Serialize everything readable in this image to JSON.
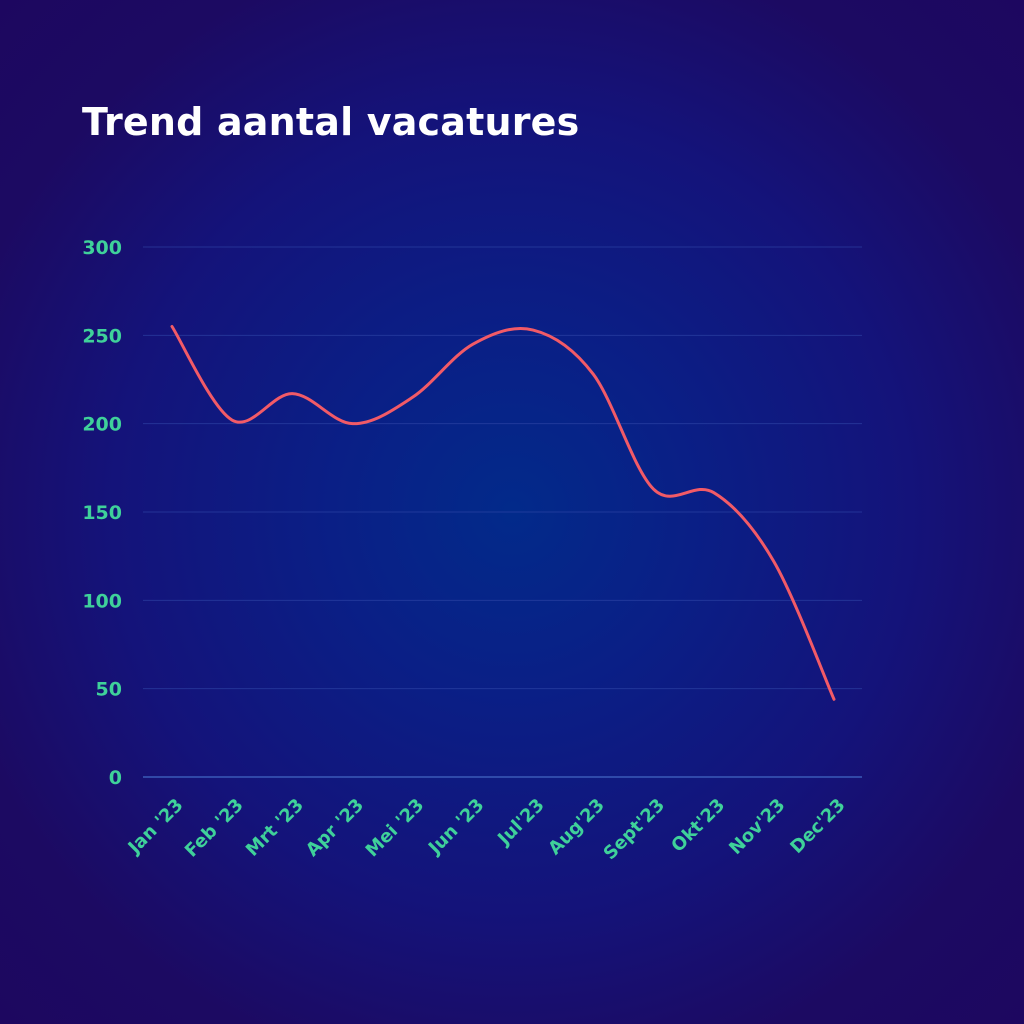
{
  "chart_data": {
    "type": "line",
    "title": "Trend aantal vacatures",
    "xlabel": "",
    "ylabel": "",
    "ylim": [
      0,
      300
    ],
    "yticks": [
      0,
      50,
      100,
      150,
      200,
      250,
      300
    ],
    "grid": true,
    "categories": [
      "Jan '23",
      "Feb '23",
      "Mrt '23",
      "Apr '23",
      "Mei '23",
      "Jun '23",
      "Jul'23",
      "Aug'23",
      "Sept'23",
      "Okt'23",
      "Nov'23",
      "Dec'23"
    ],
    "series": [
      {
        "values": [
          255,
          202,
          217,
          200,
          215,
          245,
          253,
          228,
          163,
          161,
          122,
          44
        ],
        "color": "#f25a67"
      }
    ]
  }
}
